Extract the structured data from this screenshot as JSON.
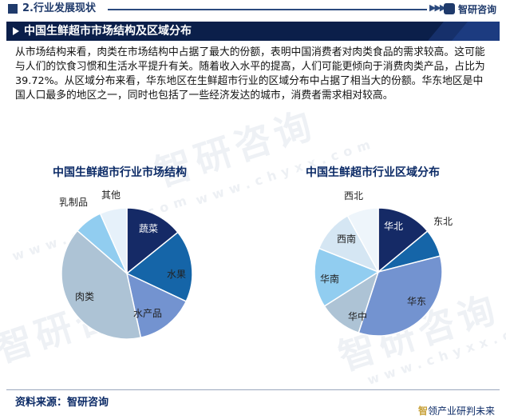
{
  "header": {
    "section": "2.行业发展现状",
    "arrows": "▶▶▶",
    "logo_text": "智研咨询"
  },
  "title_bar": {
    "title": "中国生鲜超市市场结构及区域分布"
  },
  "body_text": "从市场结构来看，肉类在市场结构中占据了最大的份额，表明中国消费者对肉类食品的需求较高。这可能与人们的饮食习惯和生活水平提升有关。随着收入水平的提高，人们可能更倾向于消费肉类产品，占比为39.72%。从区域分布来看，华东地区在生鲜超市行业的区域分布中占据了相当大的份额。华东地区是中国人口最多的地区之一，同时也包括了一些经济发达的城市，消费者需求相对较高。",
  "watermark": {
    "text": "智研咨询",
    "url_text": "www.chyxx.com"
  },
  "chart_data": [
    {
      "type": "pie",
      "title": "中国生鲜超市行业市场结构",
      "labels": [
        "蔬菜",
        "水果",
        "水产品",
        "肉类",
        "乳制品",
        "其他"
      ],
      "values": [
        14.2,
        17.8,
        14.6,
        39.72,
        7.0,
        6.68
      ],
      "colors": [
        "#152a66",
        "#1565a8",
        "#7393d0",
        "#adc3d5",
        "#91cdf0",
        "#e6f1fa"
      ]
    },
    {
      "type": "pie",
      "title": "中国生鲜超市行业区域分布",
      "labels": [
        "华北",
        "东北",
        "华东",
        "华中",
        "华南",
        "西南",
        "西北"
      ],
      "values": [
        14.0,
        7.0,
        34.0,
        11.0,
        15.0,
        11.0,
        8.0
      ],
      "colors": [
        "#152a66",
        "#1565a8",
        "#7393d0",
        "#adc3d5",
        "#91cdf0",
        "#d5e6f3",
        "#eef5fb"
      ]
    }
  ],
  "footer": {
    "source": "资料来源：智研咨询",
    "slogan_brand": "智",
    "slogan_rest": "领产业研判未来"
  }
}
